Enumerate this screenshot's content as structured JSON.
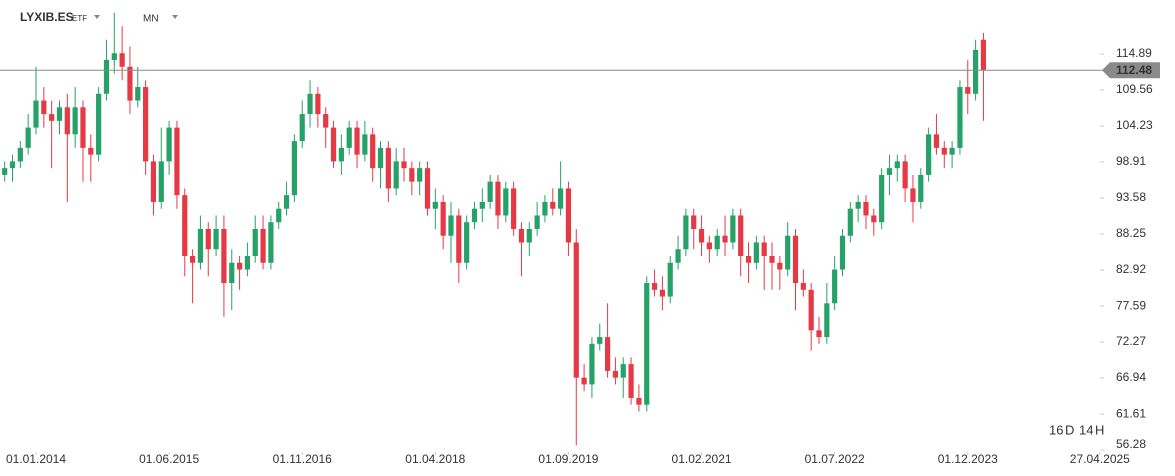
{
  "chart_data": {
    "type": "candlestick",
    "symbol": "LYXIB.ES",
    "instrument_type": "ETF",
    "interval": "MN",
    "last_price": 112.48,
    "countdown": {
      "days": 16,
      "day_unit": "D",
      "hours": 14,
      "hour_unit": "H"
    },
    "up_color": "#26a269",
    "down_color": "#e63946",
    "ylim": [
      56.0,
      122.88
    ],
    "yticks": [
      114.89,
      109.56,
      104.23,
      98.91,
      93.58,
      88.25,
      82.92,
      77.59,
      72.27,
      66.94,
      61.61,
      56.28
    ],
    "xticks": [
      "01.01.2014",
      "01.06.2015",
      "01.11.2016",
      "01.04.2018",
      "01.09.2019",
      "01.02.2021",
      "01.07.2022",
      "01.12.2023",
      "27.04.2025"
    ],
    "x": [
      "01.09.2013",
      "01.10.2013",
      "01.11.2013",
      "01.12.2013",
      "01.01.2014",
      "01.02.2014",
      "01.03.2014",
      "01.04.2014",
      "01.05.2014",
      "01.06.2014",
      "01.07.2014",
      "01.08.2014",
      "01.09.2014",
      "01.10.2014",
      "01.11.2014",
      "01.12.2014",
      "01.01.2015",
      "01.02.2015",
      "01.03.2015",
      "01.04.2015",
      "01.05.2015",
      "01.06.2015",
      "01.07.2015",
      "01.08.2015",
      "01.09.2015",
      "01.10.2015",
      "01.11.2015",
      "01.12.2015",
      "01.01.2016",
      "01.02.2016",
      "01.03.2016",
      "01.04.2016",
      "01.05.2016",
      "01.06.2016",
      "01.07.2016",
      "01.08.2016",
      "01.09.2016",
      "01.10.2016",
      "01.11.2016",
      "01.12.2016",
      "01.01.2017",
      "01.02.2017",
      "01.03.2017",
      "01.04.2017",
      "01.05.2017",
      "01.06.2017",
      "01.07.2017",
      "01.08.2017",
      "01.09.2017",
      "01.10.2017",
      "01.11.2017",
      "01.12.2017",
      "01.01.2018",
      "01.02.2018",
      "01.03.2018",
      "01.04.2018",
      "01.05.2018",
      "01.06.2018",
      "01.07.2018",
      "01.08.2018",
      "01.09.2018",
      "01.10.2018",
      "01.11.2018",
      "01.12.2018",
      "01.01.2019",
      "01.02.2019",
      "01.03.2019",
      "01.04.2019",
      "01.05.2019",
      "01.06.2019",
      "01.07.2019",
      "01.08.2019",
      "01.09.2019",
      "01.10.2019",
      "01.11.2019",
      "01.12.2019",
      "01.01.2020",
      "01.02.2020",
      "01.03.2020",
      "01.04.2020",
      "01.05.2020",
      "01.06.2020",
      "01.07.2020",
      "01.08.2020",
      "01.09.2020",
      "01.10.2020",
      "01.11.2020",
      "01.12.2020",
      "01.01.2021",
      "01.02.2021",
      "01.03.2021",
      "01.04.2021",
      "01.05.2021",
      "01.06.2021",
      "01.07.2021",
      "01.08.2021",
      "01.09.2021",
      "01.10.2021",
      "01.11.2021",
      "01.12.2021",
      "01.01.2022",
      "01.02.2022",
      "01.03.2022",
      "01.04.2022",
      "01.05.2022",
      "01.06.2022",
      "01.07.2022",
      "01.08.2022",
      "01.09.2022",
      "01.10.2022",
      "01.11.2022",
      "01.12.2022",
      "01.01.2023",
      "01.02.2023",
      "01.03.2023",
      "01.04.2023",
      "01.05.2023",
      "01.06.2023",
      "01.07.2023",
      "01.08.2023",
      "01.09.2023",
      "01.10.2023",
      "01.11.2023",
      "01.12.2023",
      "01.01.2024",
      "01.02.2024"
    ],
    "open": [
      97,
      98,
      99,
      101,
      104,
      108,
      106,
      105,
      107,
      103,
      107,
      101,
      100,
      109,
      114,
      115,
      113,
      108,
      110,
      99,
      93,
      99,
      104,
      94,
      85,
      84,
      89,
      86,
      89,
      81,
      84,
      83,
      85,
      89,
      84,
      90,
      92,
      94,
      102,
      106,
      109,
      106,
      104,
      99,
      101,
      104,
      100,
      103,
      98,
      101,
      95,
      99,
      98,
      96,
      98,
      92,
      93,
      88,
      91,
      84,
      90,
      92,
      93,
      96,
      91,
      95,
      89,
      87,
      89,
      91,
      93,
      92,
      95,
      87,
      67,
      66,
      72,
      73,
      68,
      67,
      69,
      64,
      63,
      81,
      80,
      79,
      84,
      86,
      91,
      89,
      87,
      86,
      88,
      87,
      91,
      85,
      84,
      87,
      85,
      84,
      83,
      88,
      81,
      80,
      74,
      73,
      78,
      83,
      88,
      92,
      93,
      91,
      90,
      97,
      98,
      99,
      95,
      93,
      97,
      103,
      101,
      100,
      101,
      110,
      109,
      117
    ],
    "high": [
      99,
      100,
      102,
      106,
      113,
      110,
      108,
      108,
      109,
      110,
      108,
      103,
      110,
      117,
      121,
      119,
      116,
      113,
      111,
      100,
      104,
      105,
      105,
      95,
      86,
      91,
      90,
      91,
      91,
      86,
      85,
      87,
      91,
      91,
      91,
      93,
      96,
      103,
      108,
      111,
      110,
      107,
      105,
      103,
      105,
      105,
      105,
      104,
      102,
      102,
      101,
      101,
      99,
      99,
      99,
      95,
      94,
      93,
      92,
      91,
      93,
      95,
      97,
      97,
      96,
      96,
      90,
      90,
      93,
      94,
      95,
      99,
      96,
      89,
      69,
      73,
      75,
      78,
      70,
      70,
      70,
      66,
      82,
      83,
      82,
      85,
      88,
      92,
      92,
      91,
      88,
      89,
      91,
      92,
      92,
      87,
      88,
      88,
      87,
      85,
      90,
      89,
      83,
      81,
      76,
      81,
      85,
      89,
      93,
      94,
      94,
      92,
      98,
      100,
      100,
      100,
      97,
      98,
      104,
      106,
      102,
      102,
      111,
      114,
      117,
      118
    ],
    "low": [
      96,
      96,
      98,
      100,
      103,
      104,
      98,
      103,
      93,
      101,
      96,
      96,
      99,
      108,
      112,
      111,
      106,
      107,
      97,
      91,
      92,
      97,
      92,
      82,
      78,
      83,
      82,
      85,
      76,
      77,
      80,
      82,
      84,
      83,
      83,
      89,
      91,
      93,
      101,
      104,
      104,
      101,
      98,
      97,
      100,
      98,
      99,
      96,
      95,
      93,
      94,
      96,
      94,
      94,
      91,
      89,
      86,
      84,
      81,
      83,
      89,
      90,
      92,
      89,
      90,
      88,
      82,
      85,
      88,
      90,
      91,
      91,
      85,
      57,
      65,
      64,
      71,
      67,
      66,
      64,
      63,
      62,
      62,
      79,
      77,
      78,
      83,
      85,
      86,
      85,
      84,
      85,
      85,
      86,
      82,
      81,
      83,
      80,
      80,
      80,
      82,
      77,
      79,
      71,
      72,
      72,
      77,
      82,
      87,
      90,
      89,
      88,
      89,
      94,
      96,
      93,
      90,
      92,
      96,
      100,
      98,
      98,
      100,
      106,
      108,
      105
    ],
    "close": [
      98,
      99,
      101,
      104,
      108,
      106,
      105,
      107,
      103,
      107,
      101,
      100,
      109,
      114,
      115,
      113,
      108,
      110,
      99,
      93,
      99,
      104,
      94,
      85,
      84,
      89,
      86,
      89,
      81,
      84,
      83,
      85,
      89,
      84,
      90,
      92,
      94,
      102,
      106,
      109,
      106,
      104,
      99,
      101,
      104,
      100,
      103,
      98,
      101,
      95,
      99,
      98,
      96,
      98,
      92,
      93,
      88,
      91,
      84,
      90,
      92,
      93,
      96,
      91,
      95,
      89,
      87,
      89,
      91,
      93,
      92,
      95,
      87,
      67,
      66,
      72,
      73,
      68,
      67,
      69,
      64,
      63,
      81,
      80,
      79,
      84,
      86,
      91,
      89,
      87,
      86,
      88,
      87,
      91,
      85,
      84,
      87,
      85,
      84,
      83,
      88,
      81,
      80,
      74,
      73,
      78,
      83,
      88,
      92,
      93,
      91,
      90,
      97,
      98,
      99,
      95,
      93,
      97,
      103,
      101,
      100,
      101,
      110,
      109,
      115.5,
      112.5
    ]
  }
}
